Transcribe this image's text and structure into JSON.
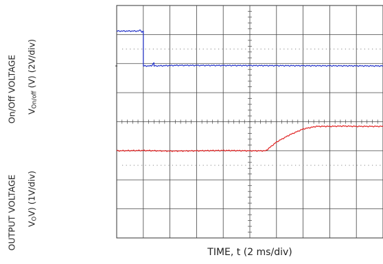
{
  "chart_data": {
    "type": "line",
    "x_divisions": 10,
    "y_divisions": 8,
    "xlabel": "TIME, t (2 ms/div)",
    "ylabel_top_line1": "On/Off VOLTAGE",
    "ylabel_top_line2_main": "V",
    "ylabel_top_line2_sub": "On/off",
    "ylabel_top_line2_tail": " (V) (2V/div)",
    "ylabel_bottom_line1": "OUTPUT VOLTAGE",
    "ylabel_bottom_line2_main": "V",
    "ylabel_bottom_line2_sub": "O",
    "ylabel_bottom_line2_tail": "V) (1V/div)",
    "grid": true,
    "series": [
      {
        "color": "#1f2fc8",
        "x": [
          0,
          0.8,
          0.9,
          0.95,
          1.0,
          1.0,
          1.3,
          1.4,
          1.4,
          2.3,
          10
        ],
        "y": [
          7.12,
          7.12,
          7.15,
          7.08,
          7.12,
          5.92,
          5.92,
          6.03,
          5.92,
          5.94,
          5.92
        ]
      },
      {
        "color": "#e02020",
        "x": [
          0,
          1,
          2,
          3,
          4,
          5,
          5.6,
          6.0,
          6.5,
          7.0,
          7.5,
          8.0,
          8.5,
          9.0,
          10
        ],
        "y": [
          3.0,
          3.01,
          2.99,
          3.0,
          3.01,
          3.0,
          3.0,
          3.3,
          3.55,
          3.75,
          3.84,
          3.84,
          3.85,
          3.84,
          3.84
        ]
      }
    ]
  }
}
